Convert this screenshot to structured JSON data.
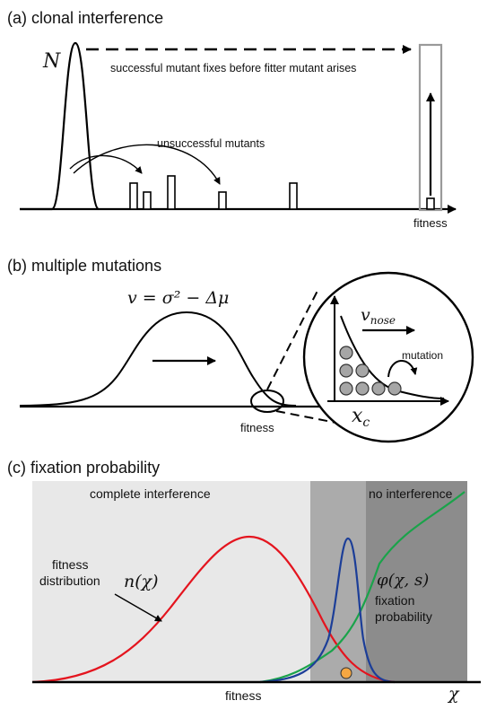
{
  "panel_a": {
    "title": "(a) clonal interference",
    "y_symbol": "N",
    "arrow_text": "successful mutant fixes before fitter mutant arises",
    "curve_text": "unsuccessful mutants",
    "x_label": "fitness"
  },
  "panel_b": {
    "title": "(b) multiple mutations",
    "equation": "v = σ² − Δμ",
    "x_label": "fitness",
    "inset": {
      "velocity_label": "v_nose",
      "mutation_label": "mutation",
      "threshold_label": "x_c"
    }
  },
  "panel_c": {
    "title": "(c) fixation probability",
    "region_left_label": "complete interference",
    "region_right_label": "no interference",
    "distribution_label_line1": "fitness",
    "distribution_label_line2": "distribution",
    "distribution_symbol": "n(χ)",
    "phi_symbol": "φ(χ, s)",
    "phi_label_line1": "fixation",
    "phi_label_line2": "probability",
    "x_label": "fitness",
    "axis_symbol": "χ"
  },
  "colors": {
    "complete_interference": "#e8e8e8",
    "intermediate": "#ababab",
    "no_interference": "#8c8c8c",
    "distribution_curve": "#e4141e",
    "narrow_peak": "#1c3e98",
    "fixation_curve": "#1aa34a",
    "marker": "#f5a742",
    "bracket": "#9a9a9a"
  }
}
